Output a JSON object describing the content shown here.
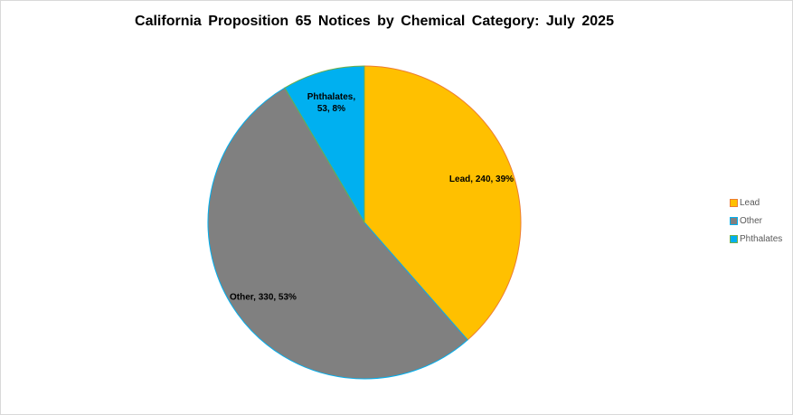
{
  "chart_data": {
    "type": "pie",
    "title": "California Proposition 65 Notices by Chemical Category: July 2025",
    "slices": [
      {
        "label": "Lead",
        "value": 240,
        "percent": "39%",
        "data_label": "Lead, 240, 39%",
        "fill": "#FFC000",
        "border": "#ED7D31"
      },
      {
        "label": "Other",
        "value": 330,
        "percent": "53%",
        "data_label": "Other, 330, 53%",
        "fill": "#808080",
        "border": "#00B0F0"
      },
      {
        "label": "Phthalates",
        "value": 53,
        "percent": "8%",
        "data_label_lines": [
          "Phthalates,",
          "53, 8%"
        ],
        "fill": "#00B0F0",
        "border": "#70AD47"
      }
    ],
    "legend": {
      "position": "right",
      "entries": [
        "Lead",
        "Other",
        "Phthalates"
      ]
    }
  }
}
